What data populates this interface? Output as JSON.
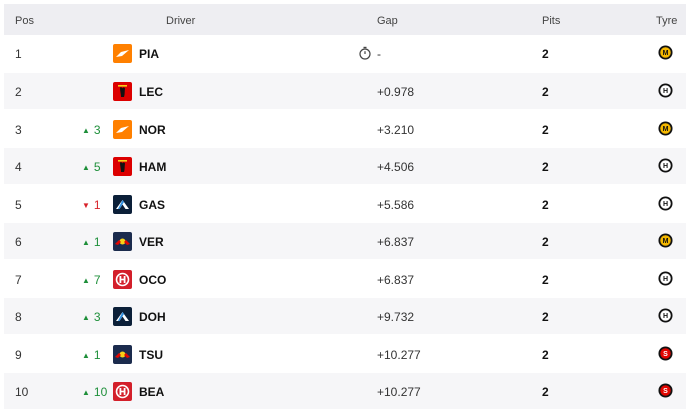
{
  "header": {
    "pos": "Pos",
    "driver": "Driver",
    "gap": "Gap",
    "pits": "Pits",
    "tyre": "Tyre"
  },
  "colors": {
    "mclaren": "#ff8000",
    "ferrari": "#dc0000",
    "alpine": "#0b1f38",
    "redbull": "#1b2b4d",
    "haas": "#d31f2a",
    "medium": "#f5b800",
    "hard": "#ffffff",
    "soft": "#e10600",
    "up": "#1e8f3a",
    "down": "#d8222a"
  },
  "rows": [
    {
      "pos": "1",
      "change": "",
      "dir": "",
      "team": "mclaren",
      "team_icon": "mclaren-logo-icon",
      "code": "PIA",
      "gap": "-",
      "fastest": true,
      "pits": "2",
      "tyre": "M",
      "tyre_icon": "medium-tyre-icon"
    },
    {
      "pos": "2",
      "change": "",
      "dir": "",
      "team": "ferrari",
      "team_icon": "ferrari-logo-icon",
      "code": "LEC",
      "gap": "+0.978",
      "fastest": false,
      "pits": "2",
      "tyre": "H",
      "tyre_icon": "hard-tyre-icon"
    },
    {
      "pos": "3",
      "change": "3",
      "dir": "up",
      "team": "mclaren",
      "team_icon": "mclaren-logo-icon",
      "code": "NOR",
      "gap": "+3.210",
      "fastest": false,
      "pits": "2",
      "tyre": "M",
      "tyre_icon": "medium-tyre-icon"
    },
    {
      "pos": "4",
      "change": "5",
      "dir": "up",
      "team": "ferrari",
      "team_icon": "ferrari-logo-icon",
      "code": "HAM",
      "gap": "+4.506",
      "fastest": false,
      "pits": "2",
      "tyre": "H",
      "tyre_icon": "hard-tyre-icon"
    },
    {
      "pos": "5",
      "change": "1",
      "dir": "down",
      "team": "alpine",
      "team_icon": "alpine-logo-icon",
      "code": "GAS",
      "gap": "+5.586",
      "fastest": false,
      "pits": "2",
      "tyre": "H",
      "tyre_icon": "hard-tyre-icon"
    },
    {
      "pos": "6",
      "change": "1",
      "dir": "up",
      "team": "redbull",
      "team_icon": "red-bull-logo-icon",
      "code": "VER",
      "gap": "+6.837",
      "fastest": false,
      "pits": "2",
      "tyre": "M",
      "tyre_icon": "medium-tyre-icon"
    },
    {
      "pos": "7",
      "change": "7",
      "dir": "up",
      "team": "haas",
      "team_icon": "haas-logo-icon",
      "code": "OCO",
      "gap": "+6.837",
      "fastest": false,
      "pits": "2",
      "tyre": "H",
      "tyre_icon": "hard-tyre-icon"
    },
    {
      "pos": "8",
      "change": "3",
      "dir": "up",
      "team": "alpine",
      "team_icon": "alpine-logo-icon",
      "code": "DOH",
      "gap": "+9.732",
      "fastest": false,
      "pits": "2",
      "tyre": "H",
      "tyre_icon": "hard-tyre-icon"
    },
    {
      "pos": "9",
      "change": "1",
      "dir": "up",
      "team": "redbull",
      "team_icon": "red-bull-logo-icon",
      "code": "TSU",
      "gap": "+10.277",
      "fastest": false,
      "pits": "2",
      "tyre": "S",
      "tyre_icon": "soft-tyre-icon"
    },
    {
      "pos": "10",
      "change": "10",
      "dir": "up",
      "team": "haas",
      "team_icon": "haas-logo-icon",
      "code": "BEA",
      "gap": "+10.277",
      "fastest": false,
      "pits": "2",
      "tyre": "S",
      "tyre_icon": "soft-tyre-icon"
    }
  ]
}
